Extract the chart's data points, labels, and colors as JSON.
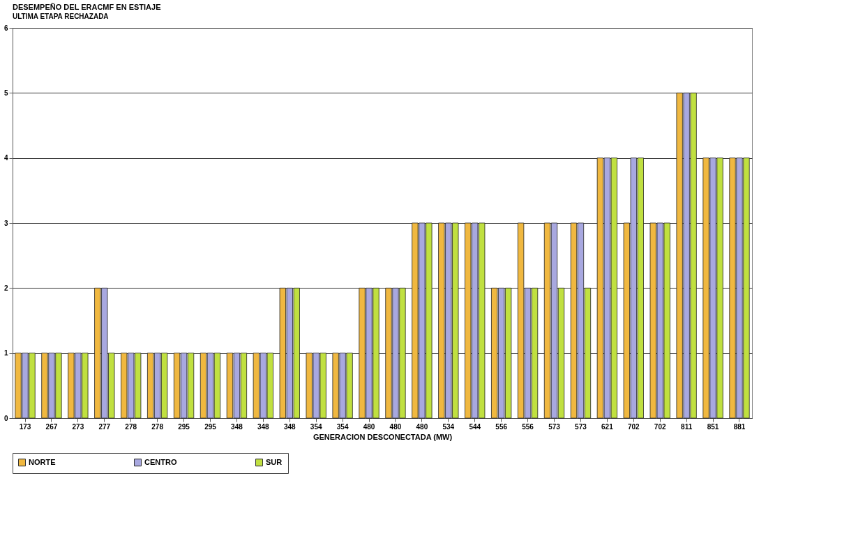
{
  "chart_data": {
    "type": "bar",
    "title": "DESEMPEÑO DEL ERACMF EN ESTIAJE",
    "ylabel": "ULTIMA ETAPA RECHAZADA",
    "xlabel": "GENERACION DESCONECTADA (MW)",
    "categories": [
      "173",
      "267",
      "273",
      "277",
      "278",
      "278",
      "295",
      "295",
      "348",
      "348",
      "348",
      "354",
      "354",
      "480",
      "480",
      "480",
      "534",
      "544",
      "556",
      "556",
      "573",
      "573",
      "621",
      "702",
      "702",
      "811",
      "851",
      "881"
    ],
    "series": [
      {
        "name": "NORTE",
        "color": "#f0b840",
        "values": [
          1,
          1,
          1,
          2,
          1,
          1,
          1,
          1,
          1,
          1,
          2,
          1,
          1,
          2,
          2,
          3,
          3,
          3,
          2,
          3,
          3,
          3,
          4,
          3,
          3,
          5,
          4,
          4
        ]
      },
      {
        "name": "CENTRO",
        "color": "#a8a8e0",
        "values": [
          1,
          1,
          1,
          2,
          1,
          1,
          1,
          1,
          1,
          1,
          2,
          1,
          1,
          2,
          2,
          3,
          3,
          3,
          2,
          2,
          3,
          3,
          4,
          4,
          3,
          5,
          4,
          4
        ]
      },
      {
        "name": "SUR",
        "color": "#c0e040",
        "values": [
          1,
          1,
          1,
          1,
          1,
          1,
          1,
          1,
          1,
          1,
          2,
          1,
          1,
          2,
          2,
          3,
          3,
          3,
          2,
          2,
          2,
          2,
          4,
          4,
          3,
          5,
          4,
          4
        ]
      }
    ],
    "ylim": [
      0,
      6
    ],
    "yticks": [
      0,
      1,
      2,
      3,
      4,
      5,
      6
    ],
    "grid": "y",
    "legend": "bottom"
  }
}
